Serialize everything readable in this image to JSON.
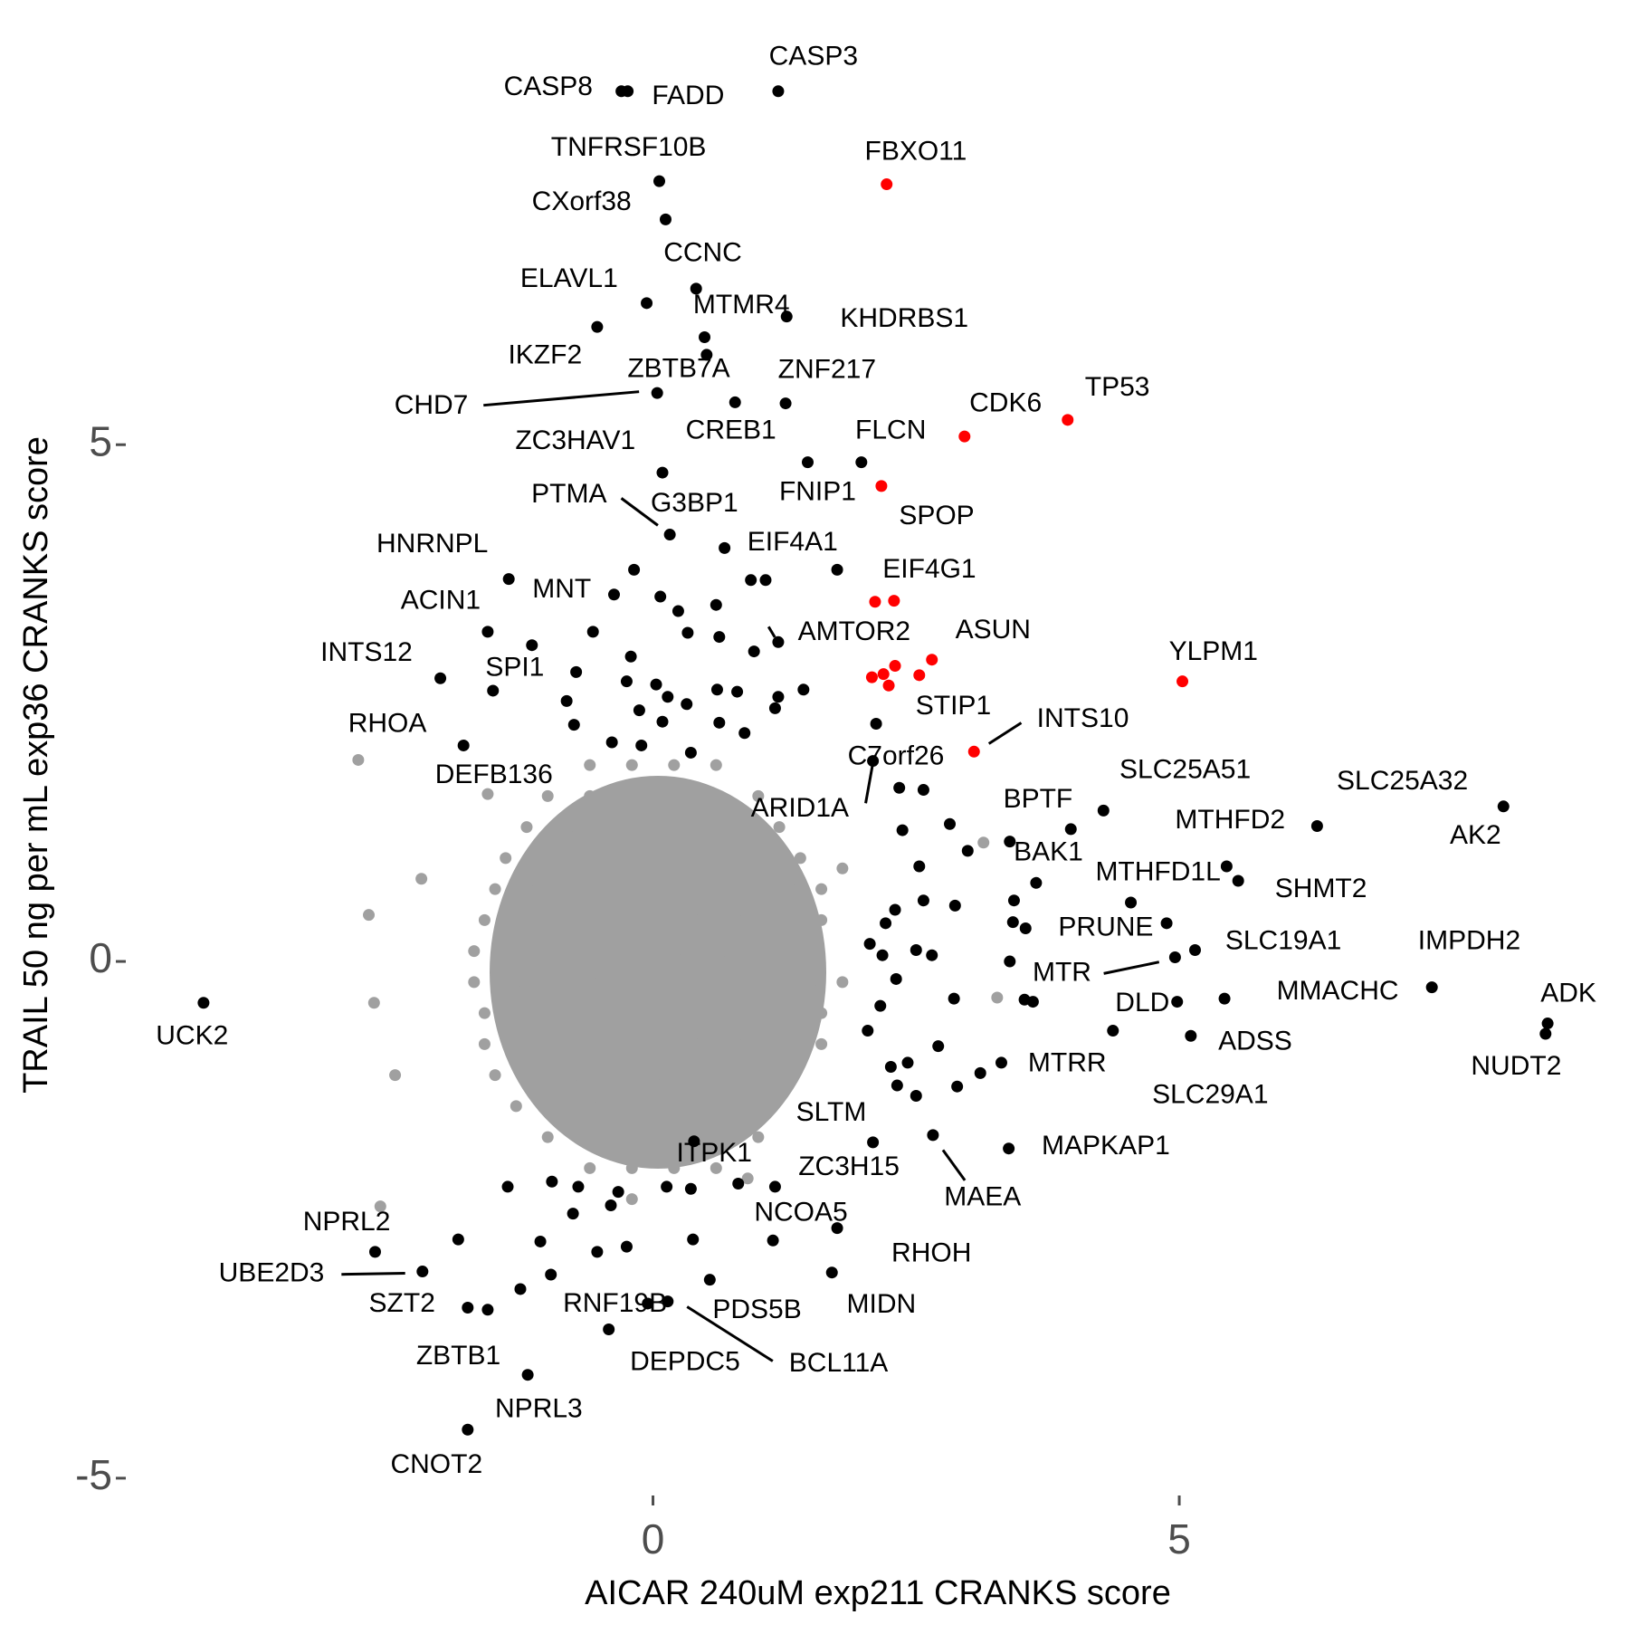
{
  "chart_data": {
    "type": "scatter",
    "x_label": "AICAR 240uM exp211 CRANKS score",
    "y_label": "TRAIL 50 ng per mL exp36 CRANKS score",
    "xlim": [
      -5,
      8.8
    ],
    "ylim": [
      -5.15,
      8.9
    ],
    "xticks": [
      0,
      5
    ],
    "yticks": [
      -5,
      0,
      5
    ],
    "grid": false,
    "series": [
      {
        "color": "#a0a0a0",
        "x": [
          -0.6,
          -0.2,
          0.2,
          0.6,
          -1.0,
          -0.6,
          -0.2,
          0.2,
          0.6,
          1.0,
          -1.2,
          -0.8,
          -0.4,
          0,
          0.4,
          0.8,
          1.2,
          -1.4,
          -1.0,
          -0.6,
          -0.2,
          0.2,
          0.6,
          1.0,
          1.4,
          -1.5,
          -1.1,
          -0.7,
          -0.3,
          0.1,
          0.5,
          0.9,
          1.3,
          1.6,
          -1.6,
          -1.2,
          -0.8,
          -0.4,
          0,
          0.4,
          0.8,
          1.2,
          1.6,
          -1.7,
          -1.3,
          -0.9,
          -0.5,
          -0.1,
          0.3,
          0.7,
          1.1,
          1.5,
          -1.7,
          -1.3,
          -0.9,
          -0.5,
          -0.1,
          0.3,
          0.7,
          1.1,
          1.5,
          1.8,
          -1.6,
          -1.2,
          -0.8,
          -0.4,
          0,
          0.4,
          0.8,
          1.2,
          1.6,
          -1.6,
          -1.2,
          -0.8,
          -0.4,
          0,
          0.4,
          0.8,
          1.2,
          1.6,
          -1.5,
          -1.1,
          -0.7,
          -0.3,
          0.1,
          0.5,
          0.9,
          1.3,
          -1.3,
          -0.9,
          -0.5,
          -0.1,
          0.3,
          0.7,
          1.1,
          -1.0,
          -0.6,
          -0.2,
          0.2,
          0.6,
          1.0,
          -0.6,
          -0.2,
          0.2,
          0.6,
          -2.8,
          -2.65,
          -2.7,
          -2.45,
          -2.59,
          3.27,
          3.14,
          -0.2,
          0.9,
          1.8,
          -2.2
        ],
        "values": [
          1.9,
          1.9,
          1.9,
          1.9,
          1.6,
          1.6,
          1.6,
          1.6,
          1.6,
          1.6,
          1.3,
          1.3,
          1.3,
          1.3,
          1.3,
          1.3,
          1.3,
          1.0,
          1.0,
          1.0,
          1.0,
          1.0,
          1.0,
          1.0,
          1.0,
          0.7,
          0.7,
          0.7,
          0.7,
          0.7,
          0.7,
          0.7,
          0.7,
          0.7,
          0.4,
          0.4,
          0.4,
          0.4,
          0.4,
          0.4,
          0.4,
          0.4,
          0.4,
          0.1,
          0.1,
          0.1,
          0.1,
          0.1,
          0.1,
          0.1,
          0.1,
          0.1,
          -0.2,
          -0.2,
          -0.2,
          -0.2,
          -0.2,
          -0.2,
          -0.2,
          -0.2,
          -0.2,
          -0.2,
          -0.5,
          -0.5,
          -0.5,
          -0.5,
          -0.5,
          -0.5,
          -0.5,
          -0.5,
          -0.5,
          -0.8,
          -0.8,
          -0.8,
          -0.8,
          -0.8,
          -0.8,
          -0.8,
          -0.8,
          -0.8,
          -1.1,
          -1.1,
          -1.1,
          -1.1,
          -1.1,
          -1.1,
          -1.1,
          -1.1,
          -1.4,
          -1.4,
          -1.4,
          -1.4,
          -1.4,
          -1.4,
          -1.4,
          -1.7,
          -1.7,
          -1.7,
          -1.7,
          -1.7,
          -1.7,
          -2.0,
          -2.0,
          -2.0,
          -2.0,
          1.95,
          -0.4,
          0.45,
          -1.1,
          -2.37,
          -0.35,
          1.15,
          -2.3,
          -2.1,
          0.9,
          0.8
        ]
      },
      {
        "color": "#000000",
        "x": [
          -0.18,
          0.07,
          0.24,
          0.6,
          0.93,
          1.07,
          0.33,
          0.63,
          0.96,
          -0.57,
          -1.15,
          -0.73,
          -0.21,
          -0.25,
          0.03,
          0.14,
          0.61,
          0.8,
          1.19,
          1.43,
          -0.82,
          -0.13,
          0.32,
          1.16,
          -0.75,
          0.09,
          0.63,
          0.87,
          -0.39,
          -0.11,
          0.36,
          2.34,
          2.57,
          2.37,
          2.82,
          3.39,
          2.53,
          2.99,
          2.57,
          2.87,
          2.3,
          3.43,
          2.21,
          3.42,
          3.54,
          2.06,
          2.5,
          2.65,
          3.39,
          2.18,
          2.31,
          2.16,
          2.86,
          3.53,
          3.61,
          2.04,
          2.71,
          2.26,
          2.42,
          3.11,
          2.89,
          2.32,
          2.5,
          -1.38,
          -0.96,
          -0.71,
          -0.33,
          0.13,
          0.36,
          -1.85,
          -1.07,
          -0.53,
          -0.25,
          0.38,
          -0.97,
          -1.26,
          -0.76,
          -0.4,
          0.81
        ],
        "values": [
          3.79,
          3.53,
          3.39,
          3.45,
          3.69,
          3.69,
          3.18,
          3.14,
          3.0,
          3.19,
          3.06,
          2.8,
          2.95,
          2.71,
          2.68,
          2.56,
          2.63,
          2.61,
          2.56,
          2.63,
          2.52,
          2.43,
          2.49,
          2.45,
          2.29,
          2.32,
          2.31,
          2.21,
          2.12,
          2.09,
          2.02,
          1.68,
          1.66,
          1.27,
          1.33,
          1.16,
          0.92,
          1.07,
          0.59,
          0.54,
          0.5,
          0.59,
          0.37,
          0.38,
          0.32,
          0.17,
          0.11,
          0.06,
          0.0,
          0.06,
          -0.17,
          -0.43,
          -0.36,
          -0.37,
          -0.39,
          -0.67,
          -0.82,
          -1.02,
          -0.98,
          -1.08,
          -1.21,
          -1.2,
          -1.3,
          -2.18,
          -2.13,
          -2.18,
          -2.23,
          -2.18,
          -2.2,
          -2.69,
          -2.71,
          -2.81,
          -2.76,
          -2.69,
          -3.03,
          -3.17,
          -2.44,
          -2.36,
          -2.15
        ]
      },
      {
        "color": "#ff0000",
        "x": [
          2.11,
          2.08,
          2.19,
          2.3,
          2.53
        ],
        "values": [
          3.48,
          2.75,
          2.78,
          2.86,
          2.77
        ]
      },
      {
        "color": "#000000",
        "labels": [
          "CASP3",
          "CASP8",
          "FADD",
          "TNFRSF10B",
          "CXorf38",
          "CCNC",
          "ELAVL1",
          "MTMR4",
          "KHDRBS1",
          "IKZF2",
          "ZBTB7A",
          "CHD7",
          "ZNF217",
          "CREB1",
          "ZC3HAV1",
          "FLCN",
          "FNIP1",
          "PTMA",
          "G3BP1",
          "EIF4A1",
          "HNRNPL",
          "MNT",
          "ACIN1",
          "AMTOR2",
          "INTS12",
          "SPI1",
          "RHOA",
          "C7orf26",
          "ARID1A",
          "BPTF",
          "SLC25A51",
          "SLC25A32",
          "AK2",
          "MTHFD2",
          "MTHFD1L",
          "SHMT2",
          "BAK1",
          "PRUNE",
          "SLC19A1",
          "IMPDH2",
          "MTR",
          "DLD",
          "MMACHC",
          "ADK",
          "NUDT2",
          "ADSS",
          "MTRR",
          "SLC29A1",
          "UCK2",
          "SLTM",
          "MAPKAP1",
          "MAEA",
          "ITPK1",
          "ZC3H15",
          "NCOA5",
          "RHOH",
          "MIDN",
          "NPRL2",
          "UBE2D3",
          "SZT2",
          "ZBTB1",
          "RNF19B",
          "PDS5B",
          "BCL11A",
          "DEPDC5",
          "NPRL3",
          "CNOT2"
        ],
        "x": [
          1.19,
          -0.3,
          -0.24,
          0.06,
          0.12,
          0.41,
          -0.06,
          0.49,
          1.27,
          -0.53,
          0.51,
          0.04,
          1.26,
          0.78,
          0.09,
          1.98,
          1.47,
          0.16,
          0.68,
          1.75,
          -1.37,
          -0.37,
          -1.57,
          1.19,
          -2.02,
          -1.52,
          -1.8,
          2.12,
          2.09,
          3.97,
          4.28,
          6.31,
          8.08,
          5.45,
          4.54,
          5.56,
          3.64,
          4.88,
          5.15,
          7.4,
          4.96,
          4.98,
          5.43,
          8.5,
          8.48,
          5.11,
          3.31,
          4.37,
          -4.27,
          2.09,
          3.38,
          2.66,
          0.39,
          1.16,
          1.14,
          1.75,
          1.7,
          -2.64,
          -2.19,
          -1.76,
          -1.57,
          -0.05,
          0.54,
          0.14,
          -0.42,
          -1.19,
          -1.76
        ],
        "values": [
          8.42,
          8.42,
          8.42,
          7.55,
          7.18,
          6.51,
          6.37,
          6.04,
          6.24,
          6.14,
          5.87,
          5.5,
          5.4,
          5.41,
          4.73,
          4.83,
          4.83,
          4.13,
          4.0,
          3.79,
          3.7,
          3.55,
          3.19,
          3.09,
          2.74,
          2.62,
          2.09,
          2.3,
          1.94,
          1.28,
          1.46,
          1.31,
          1.5,
          0.92,
          0.57,
          0.78,
          0.76,
          0.37,
          0.11,
          -0.25,
          0.04,
          -0.39,
          -0.36,
          -0.6,
          -0.7,
          -0.72,
          -0.98,
          -0.67,
          -0.4,
          -1.75,
          -1.81,
          -1.68,
          -1.74,
          -2.18,
          -2.7,
          -2.58,
          -3.01,
          -2.81,
          -3.0,
          -3.35,
          -3.37,
          -3.31,
          -3.08,
          -3.29,
          -3.56,
          -4.0,
          -4.53
        ]
      },
      {
        "color": "#ff0000",
        "labels": [
          "FBXO11",
          "CDK6",
          "TP53",
          "SPOP",
          "EIF4G1",
          "ASUN",
          "YLPM1",
          "STIP1",
          "INTS10"
        ],
        "x": [
          2.22,
          2.96,
          3.94,
          2.17,
          2.29,
          2.65,
          5.03,
          2.24,
          3.05
        ],
        "values": [
          7.52,
          5.08,
          5.24,
          4.6,
          3.49,
          2.92,
          2.71,
          2.67,
          2.03
        ]
      },
      {
        "color": "#a0a0a0",
        "labels": [
          "DEFB136"
        ],
        "x": [
          -1.57
        ],
        "values": [
          1.62
        ]
      }
    ]
  }
}
